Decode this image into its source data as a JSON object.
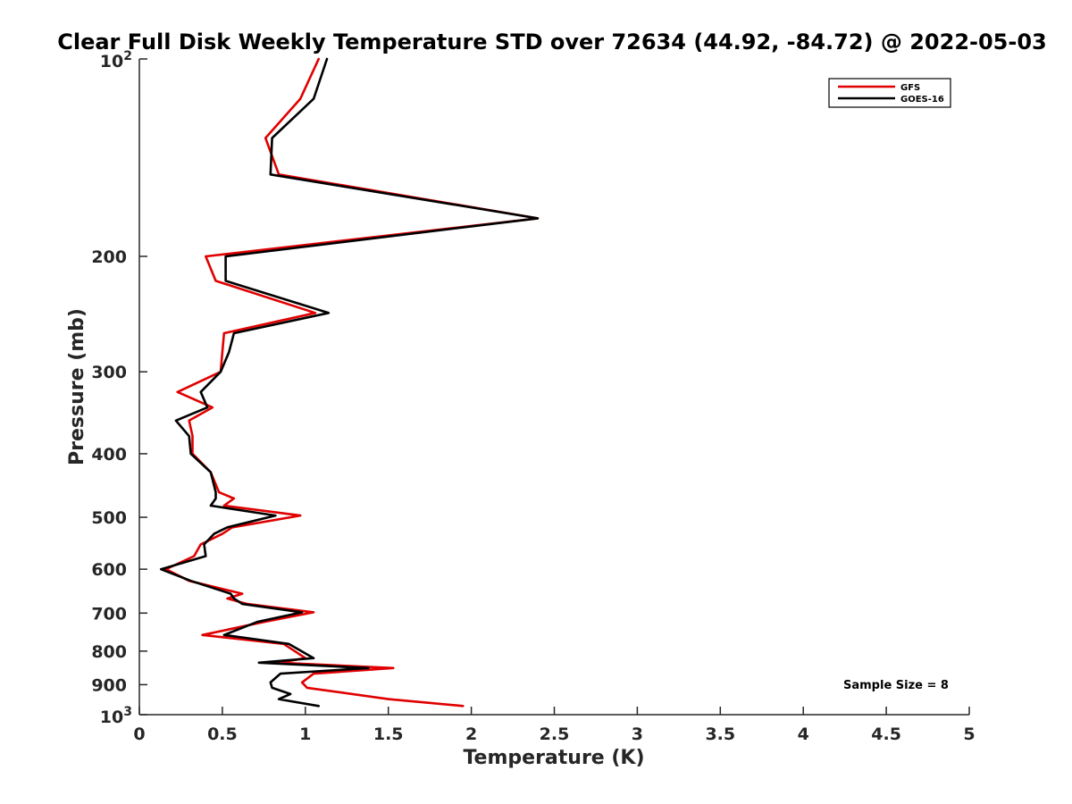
{
  "chart_data": {
    "type": "line",
    "title": "Clear Full Disk Weekly Temperature STD over 72634 (44.92, -84.72) @ 2022-05-03",
    "xlabel": "Temperature (K)",
    "ylabel": "Pressure (mb)",
    "xlim": [
      0,
      5
    ],
    "ylim": [
      100,
      1000
    ],
    "yscale": "log",
    "y_reversed": true,
    "x_ticks": [
      0,
      0.5,
      1,
      1.5,
      2,
      2.5,
      3,
      3.5,
      4,
      4.5,
      5
    ],
    "x_tick_labels": [
      "0",
      "0.5",
      "1",
      "1.5",
      "2",
      "2.5",
      "3",
      "3.5",
      "4",
      "4.5",
      "5"
    ],
    "y_ticks": [
      200,
      300,
      400,
      500,
      600,
      700,
      800,
      900
    ],
    "y_tick_labels": [
      "200",
      "300",
      "400",
      "500",
      "600",
      "700",
      "800",
      "900"
    ],
    "y_decade_ticks": [
      {
        "value": 100,
        "base": "10",
        "exp": "2"
      },
      {
        "value": 1000,
        "base": "10",
        "exp": "3"
      }
    ],
    "legend_position": "top-right",
    "annotation": "Sample Size = 8",
    "series": [
      {
        "name": "GFS",
        "color": "#e00000",
        "points": [
          [
            1.08,
            100
          ],
          [
            0.97,
            115
          ],
          [
            0.76,
            132
          ],
          [
            0.84,
            150
          ],
          [
            2.4,
            175
          ],
          [
            0.4,
            200
          ],
          [
            0.46,
            218
          ],
          [
            1.06,
            244
          ],
          [
            0.51,
            262
          ],
          [
            0.5,
            280
          ],
          [
            0.49,
            300
          ],
          [
            0.23,
            322
          ],
          [
            0.44,
            340
          ],
          [
            0.3,
            356
          ],
          [
            0.32,
            376
          ],
          [
            0.32,
            400
          ],
          [
            0.43,
            427
          ],
          [
            0.48,
            458
          ],
          [
            0.57,
            468
          ],
          [
            0.51,
            480
          ],
          [
            0.97,
            497
          ],
          [
            0.56,
            518
          ],
          [
            0.5,
            530
          ],
          [
            0.37,
            550
          ],
          [
            0.33,
            573
          ],
          [
            0.16,
            600
          ],
          [
            0.3,
            625
          ],
          [
            0.62,
            654
          ],
          [
            0.53,
            665
          ],
          [
            0.65,
            678
          ],
          [
            1.05,
            698
          ],
          [
            0.75,
            722
          ],
          [
            0.38,
            756
          ],
          [
            0.87,
            780
          ],
          [
            1.0,
            820
          ],
          [
            0.84,
            833
          ],
          [
            1.53,
            849
          ],
          [
            1.05,
            866
          ],
          [
            0.98,
            893
          ],
          [
            1.01,
            910
          ],
          [
            1.5,
            947
          ],
          [
            1.95,
            970
          ]
        ]
      },
      {
        "name": "GOES-16",
        "color": "#000000",
        "points": [
          [
            1.13,
            100
          ],
          [
            1.05,
            115
          ],
          [
            0.8,
            132
          ],
          [
            0.79,
            150
          ],
          [
            2.4,
            175
          ],
          [
            0.52,
            200
          ],
          [
            0.52,
            218
          ],
          [
            1.14,
            244
          ],
          [
            0.57,
            262
          ],
          [
            0.54,
            280
          ],
          [
            0.49,
            300
          ],
          [
            0.37,
            322
          ],
          [
            0.41,
            340
          ],
          [
            0.22,
            356
          ],
          [
            0.3,
            376
          ],
          [
            0.31,
            400
          ],
          [
            0.43,
            427
          ],
          [
            0.46,
            458
          ],
          [
            0.46,
            468
          ],
          [
            0.43,
            480
          ],
          [
            0.82,
            497
          ],
          [
            0.53,
            518
          ],
          [
            0.45,
            530
          ],
          [
            0.39,
            550
          ],
          [
            0.4,
            573
          ],
          [
            0.13,
            600
          ],
          [
            0.31,
            625
          ],
          [
            0.55,
            654
          ],
          [
            0.57,
            665
          ],
          [
            0.62,
            678
          ],
          [
            0.98,
            698
          ],
          [
            0.71,
            722
          ],
          [
            0.51,
            756
          ],
          [
            0.9,
            780
          ],
          [
            1.05,
            820
          ],
          [
            0.72,
            833
          ],
          [
            1.38,
            849
          ],
          [
            0.85,
            866
          ],
          [
            0.79,
            893
          ],
          [
            0.8,
            910
          ],
          [
            0.91,
            930
          ],
          [
            0.84,
            947
          ],
          [
            1.08,
            970
          ]
        ]
      }
    ]
  }
}
